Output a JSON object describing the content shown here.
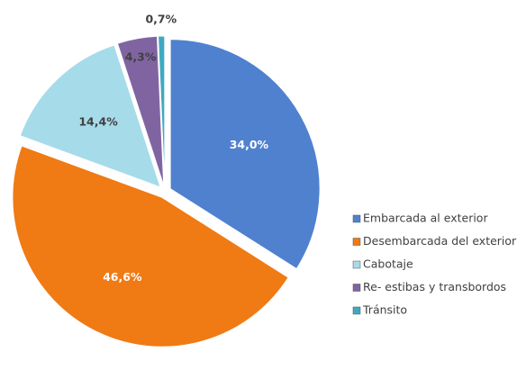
{
  "chart_data": {
    "type": "pie",
    "categories": [
      "Embarcada al exterior",
      "Desembarcada del exterior",
      "Cabotaje",
      "Re- estibas y transbordos",
      "Tránsito"
    ],
    "values": [
      34.0,
      46.6,
      14.4,
      4.3,
      0.7
    ],
    "value_labels": [
      "34,0%",
      "46,6%",
      "14,4%",
      "4,3%",
      "0,7%"
    ],
    "colors": [
      "#4f81cf",
      "#f07a14",
      "#a6dbea",
      "#8064a2",
      "#3fa9c0"
    ],
    "legend": "right"
  }
}
